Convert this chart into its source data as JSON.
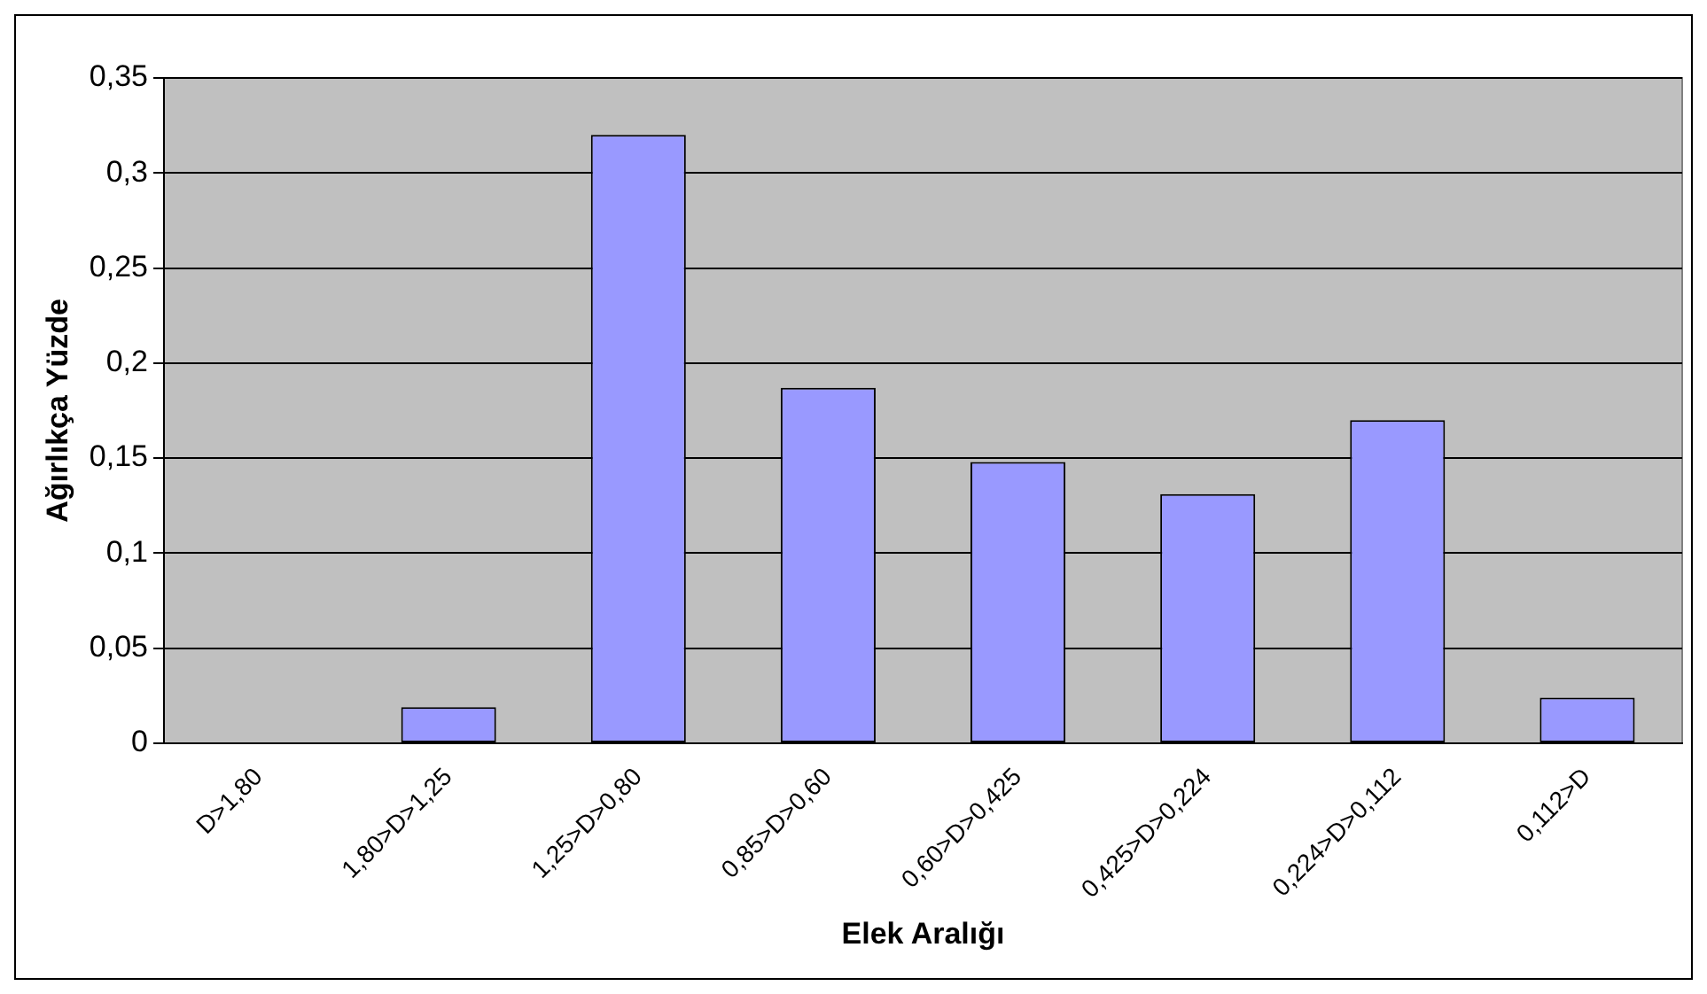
{
  "chart_data": {
    "type": "bar",
    "xlabel": "Elek Aralığı",
    "ylabel": "Ağırlıkça Yüzde",
    "categories": [
      "D>1,80",
      "1,80>D>1,25",
      "1,25>D>0,80",
      "0,85>D>0,60",
      "0,60>D>0,425",
      "0,425>D>0,224",
      "0,224>D>0,112",
      "0,112>D"
    ],
    "values": [
      0,
      0.019,
      0.32,
      0.187,
      0.148,
      0.131,
      0.17,
      0.024
    ],
    "color": "#9999ff",
    "ylim": [
      0,
      0.35
    ],
    "yticks": [
      {
        "value": 0,
        "label": "0"
      },
      {
        "value": 0.05,
        "label": "0,05"
      },
      {
        "value": 0.1,
        "label": "0,1"
      },
      {
        "value": 0.15,
        "label": "0,15"
      },
      {
        "value": 0.2,
        "label": "0,2"
      },
      {
        "value": 0.25,
        "label": "0,25"
      },
      {
        "value": 0.3,
        "label": "0,3"
      },
      {
        "value": 0.35,
        "label": "0,35"
      }
    ],
    "grid": "y",
    "legend": false
  }
}
